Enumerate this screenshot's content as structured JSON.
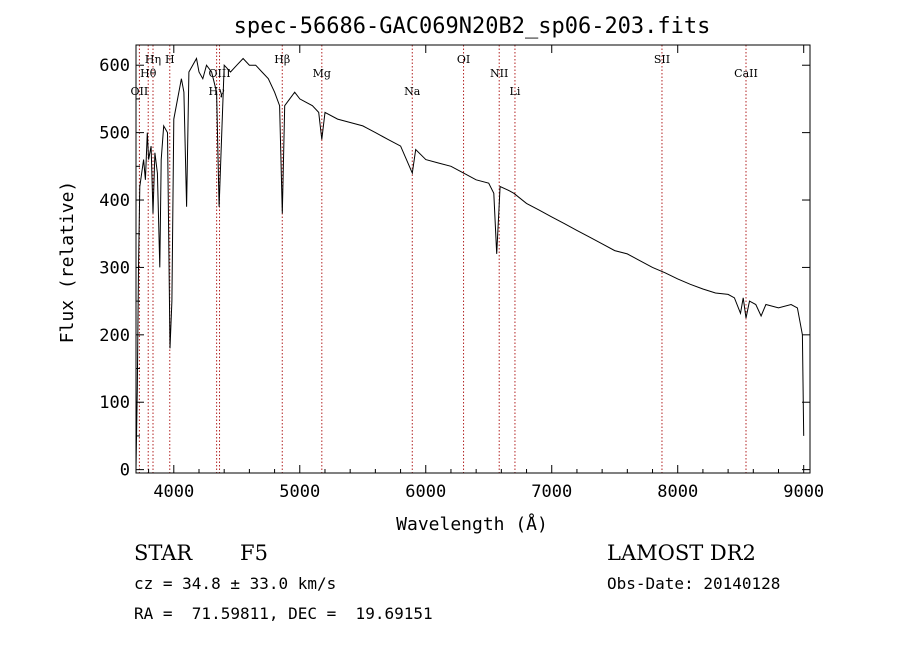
{
  "chart_data": {
    "type": "line",
    "title": "spec-56686-GAC069N20B2_sp06-203.fits",
    "xlabel": "Wavelength (Å)",
    "ylabel": "Flux (relative)",
    "xlim": [
      3700,
      9050
    ],
    "ylim": [
      -5,
      630
    ],
    "x_ticks": [
      4000,
      5000,
      6000,
      7000,
      8000,
      9000
    ],
    "x_tick_labels": [
      "4000",
      "5000",
      "6000",
      "7000",
      "8000",
      "9000"
    ],
    "y_ticks": [
      0,
      100,
      200,
      300,
      400,
      500,
      600
    ],
    "y_tick_labels": [
      "0",
      "100",
      "200",
      "300",
      "400",
      "500",
      "600"
    ],
    "line_color": "#000000",
    "marker_color": "#b22222",
    "series": [
      {
        "name": "flux",
        "x": [
          3700,
          3710,
          3720,
          3730,
          3745,
          3760,
          3775,
          3790,
          3800,
          3820,
          3835,
          3850,
          3870,
          3889,
          3900,
          3920,
          3950,
          3970,
          3985,
          4000,
          4030,
          4060,
          4080,
          4102,
          4120,
          4150,
          4180,
          4200,
          4230,
          4260,
          4300,
          4340,
          4360,
          4400,
          4450,
          4500,
          4550,
          4600,
          4650,
          4700,
          4750,
          4800,
          4840,
          4861,
          4880,
          4920,
          4960,
          5000,
          5050,
          5100,
          5150,
          5175,
          5200,
          5300,
          5400,
          5500,
          5600,
          5700,
          5800,
          5893,
          5920,
          6000,
          6100,
          6200,
          6300,
          6400,
          6500,
          6540,
          6563,
          6590,
          6650,
          6700,
          6800,
          6900,
          7000,
          7100,
          7200,
          7300,
          7400,
          7500,
          7600,
          7700,
          7800,
          7900,
          8000,
          8100,
          8200,
          8300,
          8400,
          8450,
          8498,
          8520,
          8542,
          8570,
          8620,
          8662,
          8700,
          8800,
          8900,
          8950,
          8990,
          9000
        ],
        "y": [
          0,
          120,
          300,
          420,
          440,
          460,
          430,
          500,
          460,
          480,
          380,
          470,
          440,
          300,
          460,
          510,
          500,
          180,
          250,
          520,
          550,
          580,
          560,
          390,
          590,
          600,
          610,
          590,
          580,
          600,
          590,
          560,
          390,
          600,
          590,
          600,
          610,
          600,
          600,
          590,
          580,
          560,
          540,
          380,
          540,
          550,
          560,
          550,
          545,
          540,
          530,
          490,
          530,
          520,
          515,
          510,
          500,
          490,
          480,
          440,
          475,
          460,
          455,
          450,
          440,
          430,
          425,
          410,
          320,
          420,
          415,
          410,
          395,
          385,
          375,
          365,
          355,
          345,
          335,
          325,
          320,
          310,
          300,
          292,
          283,
          275,
          268,
          262,
          260,
          255,
          232,
          255,
          225,
          250,
          245,
          228,
          245,
          240,
          245,
          240,
          200,
          50
        ]
      }
    ],
    "line_markers": [
      {
        "label": "Hη",
        "wavelength": 3835
      },
      {
        "label": "Hθ",
        "wavelength": 3797
      },
      {
        "label": "OII",
        "wavelength": 3727
      },
      {
        "label": "H",
        "wavelength": 3968
      },
      {
        "label": "OIII",
        "wavelength": 4363
      },
      {
        "label": "Hγ",
        "wavelength": 4340
      },
      {
        "label": "Hβ",
        "wavelength": 4861
      },
      {
        "label": "Mg",
        "wavelength": 5175
      },
      {
        "label": "Na",
        "wavelength": 5893
      },
      {
        "label": "OI",
        "wavelength": 6300
      },
      {
        "label": "NII",
        "wavelength": 6583
      },
      {
        "label": "Li",
        "wavelength": 6708
      },
      {
        "label": "SII",
        "wavelength": 7875
      },
      {
        "label": "CaII",
        "wavelength": 8542
      }
    ]
  },
  "info": {
    "object_class": "STAR",
    "subclass": "F5",
    "survey": "LAMOST DR2",
    "cz": "cz = 34.8 ± 33.0 km/s",
    "obs_date": "Obs-Date: 20140128",
    "coords": "RA =  71.59811, DEC =  19.69151"
  }
}
